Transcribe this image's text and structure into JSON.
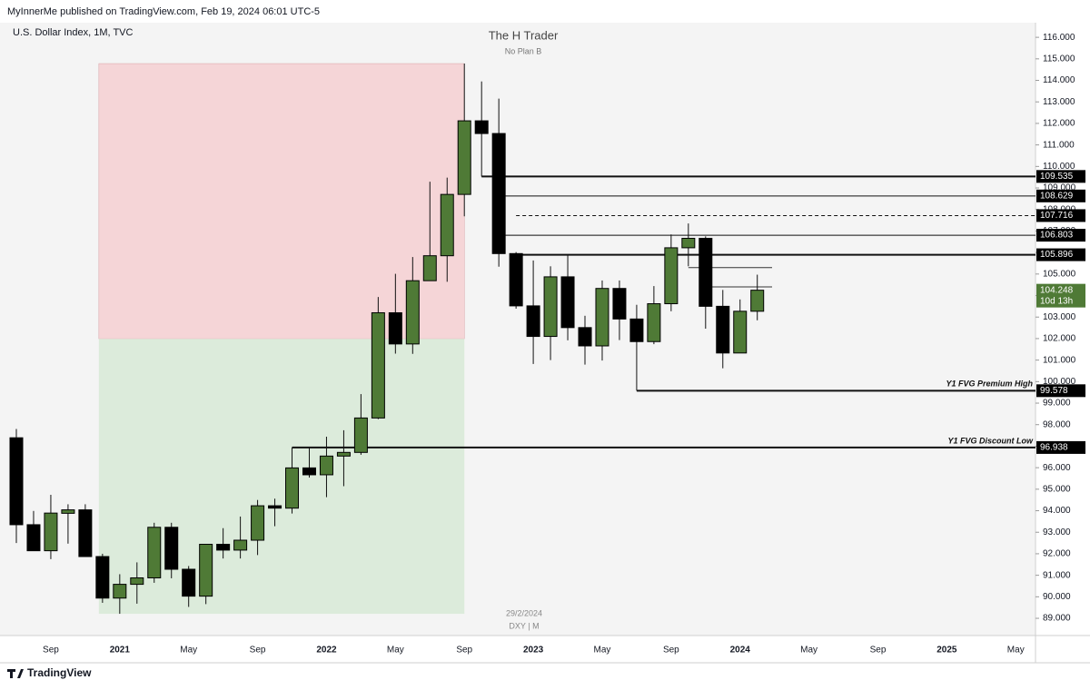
{
  "chart_data": {
    "type": "candlestick",
    "header": "MyInnerMe published on TradingView.com, Feb 19, 2024 06:01 UTC-5",
    "symbol": "U.S. Dollar Index, 1M, TVC",
    "title": "The H Trader",
    "subtitle": "No Plan B",
    "date_label": "29/2/2024",
    "ticker_label": "DXY | M",
    "footer": "TradingView",
    "up_color": "#4f7a36",
    "down_color": "#000000",
    "categories": [
      null,
      null,
      "Sep",
      null,
      null,
      null,
      "2021",
      null,
      null,
      null,
      "May",
      null,
      null,
      null,
      "Sep",
      null,
      null,
      null,
      "2022",
      null,
      null,
      null,
      "May",
      null,
      null,
      null,
      "Sep",
      null,
      null,
      null,
      "2023",
      null,
      null,
      null,
      "May",
      null,
      null,
      null,
      "Sep",
      null,
      null,
      null,
      "2024",
      null,
      null,
      null,
      "May",
      null,
      null,
      null,
      "Sep",
      null,
      null,
      null,
      "2025",
      null,
      null,
      null,
      "May"
    ],
    "open": [
      97.39,
      93.35,
      92.14,
      93.88,
      94.04,
      91.87,
      89.94,
      90.58,
      90.88,
      93.23,
      91.28,
      90.03,
      92.44,
      92.17,
      92.63,
      94.23,
      94.12,
      95.99,
      95.67,
      96.54,
      96.71,
      98.31,
      103.2,
      101.75,
      104.69,
      105.85,
      108.7,
      112.12,
      111.53,
      105.95,
      103.52,
      102.1,
      104.87,
      102.51,
      101.66,
      104.33,
      102.91,
      101.86,
      103.62,
      106.22,
      106.66,
      103.5,
      101.33,
      103.27,
      null,
      null,
      null,
      null,
      null,
      null,
      null,
      null,
      null,
      null,
      null,
      null,
      null,
      null,
      null
    ],
    "high": [
      97.8,
      93.99,
      94.74,
      94.3,
      94.3,
      92.0,
      91.05,
      91.6,
      93.44,
      93.44,
      91.43,
      92.4,
      93.19,
      93.73,
      94.5,
      94.56,
      96.94,
      96.91,
      97.44,
      97.74,
      99.42,
      103.93,
      105.01,
      105.79,
      109.29,
      109.48,
      114.78,
      113.95,
      113.15,
      106.02,
      105.63,
      105.36,
      105.88,
      103.06,
      104.7,
      104.7,
      103.57,
      104.44,
      106.84,
      107.35,
      106.75,
      104.26,
      103.82,
      104.97,
      null,
      null,
      null,
      null,
      null,
      null,
      null,
      null,
      null,
      null,
      null,
      null,
      null,
      null,
      null
    ],
    "low": [
      92.5,
      92.19,
      91.75,
      92.47,
      91.92,
      89.72,
      89.21,
      89.68,
      90.65,
      90.86,
      89.53,
      89.66,
      91.78,
      91.78,
      91.94,
      93.28,
      93.87,
      95.54,
      94.63,
      95.14,
      96.6,
      98.26,
      101.3,
      101.29,
      104.69,
      104.64,
      107.68,
      109.53,
      105.34,
      103.39,
      100.82,
      101.0,
      101.92,
      100.79,
      100.98,
      101.93,
      99.58,
      101.74,
      103.27,
      105.36,
      102.46,
      100.62,
      101.33,
      102.85,
      null,
      null,
      null,
      null,
      null,
      null,
      null,
      null,
      null,
      null,
      null,
      null,
      null,
      null,
      null
    ],
    "close": [
      93.35,
      92.14,
      93.89,
      94.04,
      91.87,
      89.94,
      90.58,
      90.88,
      93.23,
      91.28,
      90.03,
      92.44,
      92.17,
      92.63,
      94.23,
      94.12,
      95.99,
      95.67,
      96.54,
      96.71,
      98.31,
      103.2,
      101.75,
      104.69,
      105.85,
      108.7,
      112.12,
      111.53,
      105.95,
      103.52,
      102.1,
      104.87,
      102.51,
      101.66,
      104.33,
      102.91,
      101.86,
      103.62,
      106.22,
      106.66,
      103.5,
      101.33,
      103.27,
      104.248,
      null,
      null,
      null,
      null,
      null,
      null,
      null,
      null,
      null,
      null,
      null,
      null,
      null,
      null,
      null
    ],
    "countdown": "10d 13h",
    "zones": [
      {
        "top": 114.78,
        "bottom": 101.99,
        "color": "#f5d5d7"
      },
      {
        "top": 101.99,
        "bottom": 89.21,
        "color": "#dcebdb"
      }
    ],
    "levels": [
      {
        "value": 109.535
      },
      {
        "value": 108.629
      },
      {
        "value": 107.716
      },
      {
        "value": 106.803
      },
      {
        "value": 105.896
      },
      {
        "value": 99.578,
        "label": "Y1 FVG Premium High"
      },
      {
        "value": 96.938,
        "label": "Y1 FVG Discount Low"
      }
    ],
    "segments": [
      {
        "value": 105.3
      },
      {
        "value": 104.4
      }
    ],
    "ylim": [
      88.2,
      116.68
    ],
    "yticks": [
      {
        "value": 89,
        "label": "89.000"
      },
      {
        "value": 90,
        "label": "90.000"
      },
      {
        "value": 91,
        "label": "91.000"
      },
      {
        "value": 92,
        "label": "92.000"
      },
      {
        "value": 93,
        "label": "93.000"
      },
      {
        "value": 94,
        "label": "94.000"
      },
      {
        "value": 95,
        "label": "95.000"
      },
      {
        "value": 96,
        "label": "96.000"
      },
      {
        "value": 97,
        "label": "97.000"
      },
      {
        "value": 98,
        "label": "98.000"
      },
      {
        "value": 99,
        "label": "99.000"
      },
      {
        "value": 100,
        "label": "100.000"
      },
      {
        "value": 101,
        "label": "101.000"
      },
      {
        "value": 102,
        "label": "102.000"
      },
      {
        "value": 103,
        "label": "103.000"
      },
      {
        "value": 104,
        "label": "104.000"
      },
      {
        "value": 105,
        "label": "105.000"
      },
      {
        "value": 106,
        "label": "106.000"
      },
      {
        "value": 107,
        "label": "107.000"
      },
      {
        "value": 108,
        "label": "108.000"
      },
      {
        "value": 109,
        "label": "109.000"
      },
      {
        "value": 110,
        "label": "110.000"
      },
      {
        "value": 111,
        "label": "111.000"
      },
      {
        "value": 112,
        "label": "112.000"
      },
      {
        "value": 113,
        "label": "113.000"
      },
      {
        "value": 114,
        "label": "114.000"
      },
      {
        "value": 115,
        "label": "115.000"
      },
      {
        "value": 116,
        "label": "116.000"
      }
    ]
  }
}
